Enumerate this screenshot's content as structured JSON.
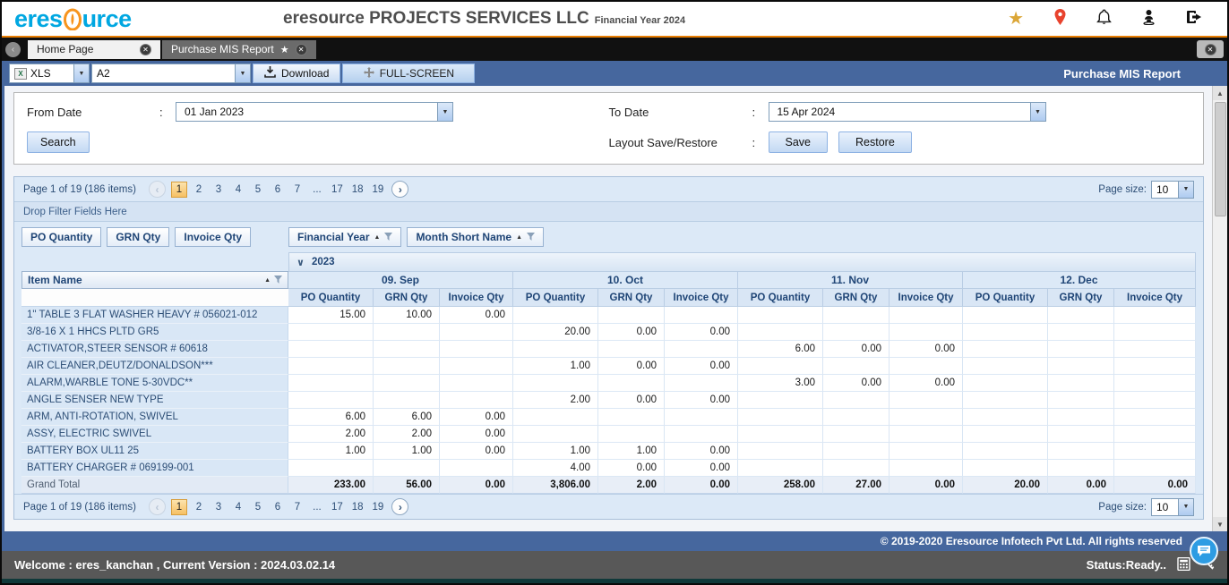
{
  "header": {
    "logo_pre": "eres",
    "logo_post": "urce",
    "company": "eresource PROJECTS SERVICES LLC",
    "financial_year": "Financial Year 2024"
  },
  "tabs": [
    {
      "label": "Home Page"
    },
    {
      "label": "Purchase MIS Report"
    }
  ],
  "toolbar": {
    "export_format": "XLS",
    "sheet": "A2",
    "download_label": "Download",
    "fullscreen_label": "FULL-SCREEN",
    "title": "Purchase MIS Report"
  },
  "filters": {
    "from_date_label": "From Date",
    "from_date": "01 Jan 2023",
    "to_date_label": "To Date",
    "to_date": "15 Apr 2024",
    "colon": ":",
    "search_label": "Search",
    "layout_label": "Layout Save/Restore",
    "save_label": "Save",
    "restore_label": "Restore"
  },
  "pager": {
    "summary": "Page 1 of 19 (186 items)",
    "pages": [
      "1",
      "2",
      "3",
      "4",
      "5",
      "6",
      "7",
      "...",
      "17",
      "18",
      "19"
    ],
    "active_page": "1",
    "prev": "‹",
    "next": "›",
    "page_size_label": "Page size:",
    "page_size": "10"
  },
  "pivot": {
    "drop_filter_text": "Drop Filter Fields Here",
    "data_fields": [
      "PO Quantity",
      "GRN Qty",
      "Invoice Qty"
    ],
    "column_fields": [
      "Financial Year",
      "Month Short Name"
    ],
    "group_label": "2023",
    "group_caret": "∨",
    "row_field": "Item Name",
    "months": [
      "09. Sep",
      "10. Oct",
      "11. Nov",
      "12. Dec"
    ],
    "measures": [
      "PO Quantity",
      "GRN Qty",
      "Invoice Qty"
    ]
  },
  "table": {
    "rows": [
      {
        "item": "1\" TABLE 3 FLAT WASHER HEAVY # 056021-012",
        "values": [
          "15.00",
          "10.00",
          "0.00",
          "",
          "",
          "",
          "",
          "",
          "",
          "",
          "",
          ""
        ]
      },
      {
        "item": "3/8-16 X 1 HHCS PLTD GR5",
        "values": [
          "",
          "",
          "",
          "20.00",
          "0.00",
          "0.00",
          "",
          "",
          "",
          "",
          "",
          ""
        ]
      },
      {
        "item": "ACTIVATOR,STEER SENSOR # 60618",
        "values": [
          "",
          "",
          "",
          "",
          "",
          "",
          "6.00",
          "0.00",
          "0.00",
          "",
          "",
          ""
        ]
      },
      {
        "item": "AIR CLEANER,DEUTZ/DONALDSON***",
        "values": [
          "",
          "",
          "",
          "1.00",
          "0.00",
          "0.00",
          "",
          "",
          "",
          "",
          "",
          ""
        ]
      },
      {
        "item": "ALARM,WARBLE TONE 5-30VDC**",
        "values": [
          "",
          "",
          "",
          "",
          "",
          "",
          "3.00",
          "0.00",
          "0.00",
          "",
          "",
          ""
        ]
      },
      {
        "item": "ANGLE SENSER NEW TYPE",
        "values": [
          "",
          "",
          "",
          "2.00",
          "0.00",
          "0.00",
          "",
          "",
          "",
          "",
          "",
          ""
        ]
      },
      {
        "item": "ARM, ANTI-ROTATION, SWIVEL",
        "values": [
          "6.00",
          "6.00",
          "0.00",
          "",
          "",
          "",
          "",
          "",
          "",
          "",
          "",
          ""
        ]
      },
      {
        "item": "ASSY, ELECTRIC SWIVEL",
        "values": [
          "2.00",
          "2.00",
          "0.00",
          "",
          "",
          "",
          "",
          "",
          "",
          "",
          "",
          ""
        ]
      },
      {
        "item": "BATTERY BOX UL11 25",
        "values": [
          "1.00",
          "1.00",
          "0.00",
          "1.00",
          "1.00",
          "0.00",
          "",
          "",
          "",
          "",
          "",
          ""
        ]
      },
      {
        "item": "BATTERY CHARGER # 069199-001",
        "values": [
          "",
          "",
          "",
          "4.00",
          "0.00",
          "0.00",
          "",
          "",
          "",
          "",
          "",
          ""
        ]
      },
      {
        "item": "Grand Total",
        "total": true,
        "values": [
          "233.00",
          "56.00",
          "0.00",
          "3,806.00",
          "2.00",
          "0.00",
          "258.00",
          "27.00",
          "0.00",
          "20.00",
          "0.00",
          "0.00"
        ]
      }
    ]
  },
  "footer": {
    "copyright": "© 2019-2020 Eresource Infotech Pvt Ltd. All rights reserved",
    "welcome": "Welcome : eres_kanchan , Current Version : 2024.03.02.14",
    "status": "Status:Ready.."
  },
  "colors": {
    "toolbar_blue": "#46679e",
    "accent_orange": "#e87e04",
    "logo_blue": "#00a7e1",
    "logo_orange": "#f7941d",
    "active_page_orange": "#d89e3c",
    "pin_red": "#e8432e",
    "chat_blue": "#2d9ce3"
  }
}
